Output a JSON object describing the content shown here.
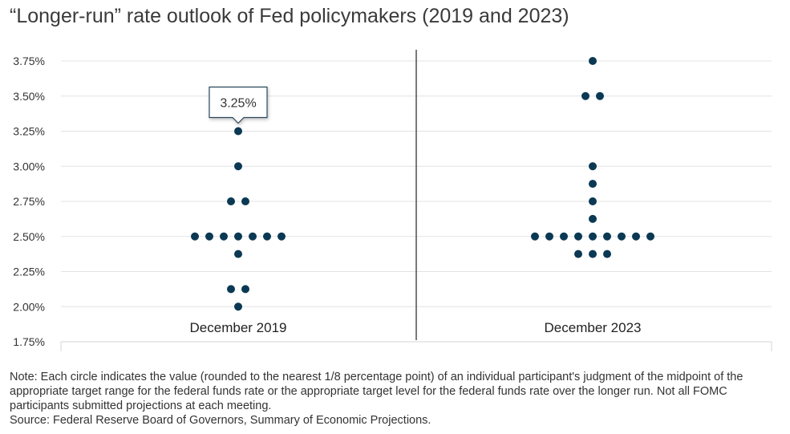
{
  "title": "“Longer-run” rate outlook of Fed policymakers (2019 and 2023)",
  "note": "Note: Each circle indicates the value (rounded to the nearest 1/8 percentage point) of an individual participant's judgment of the midpoint of the appropriate target range for the federal funds rate or the appropriate target level for the federal funds rate over the longer run. Not all FOMC participants submitted projections at each meeting.",
  "source": "Source: Federal Reserve Board of Governors, Summary of Economic Projections.",
  "colors": {
    "dot": "#0b3954",
    "grid": "#e3e3e3",
    "divider": "#222222",
    "tooltip_border": "#2c4a5e"
  },
  "chart_data": {
    "type": "scatter",
    "subtype": "dot-plot",
    "ylim": [
      1.75,
      3.75
    ],
    "y_ticks": [
      "3.75%",
      "3.50%",
      "3.25%",
      "3.00%",
      "2.75%",
      "2.50%",
      "2.25%",
      "2.00%",
      "1.75%"
    ],
    "y_tick_values": [
      3.75,
      3.5,
      3.25,
      3.0,
      2.75,
      2.5,
      2.25,
      2.0,
      1.75
    ],
    "grid": true,
    "categories": [
      "December 2019",
      "December 2023"
    ],
    "series": [
      {
        "category": "December 2019",
        "values": [
          3.25,
          3.0,
          2.75,
          2.75,
          2.5,
          2.5,
          2.5,
          2.5,
          2.5,
          2.5,
          2.5,
          2.375,
          2.125,
          2.125,
          2.0
        ]
      },
      {
        "category": "December 2023",
        "values": [
          3.75,
          3.5,
          3.5,
          3.0,
          2.875,
          2.75,
          2.625,
          2.5,
          2.5,
          2.5,
          2.5,
          2.5,
          2.5,
          2.5,
          2.5,
          2.5,
          2.375,
          2.375,
          2.375
        ]
      }
    ],
    "tooltip": {
      "category": "December 2019",
      "value": 3.25,
      "label": "3.25%"
    }
  }
}
